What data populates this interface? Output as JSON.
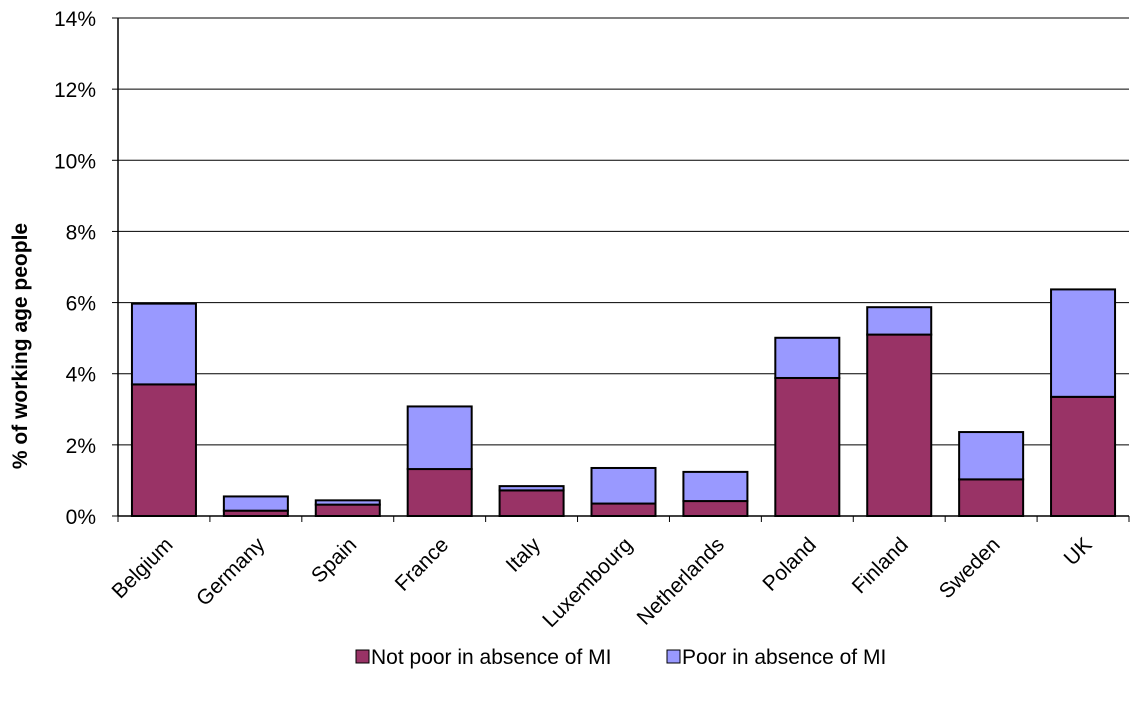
{
  "chart_data": {
    "type": "bar",
    "stacked": true,
    "categories": [
      "Belgium",
      "Germany",
      "Spain",
      "France",
      "Italy",
      "Luxembourg",
      "Netherlands",
      "Poland",
      "Finland",
      "Sweden",
      "UK"
    ],
    "series": [
      {
        "name": "Not poor in absence of MI",
        "color": "#993366",
        "values": [
          3.7,
          0.15,
          0.32,
          1.32,
          0.72,
          0.35,
          0.42,
          3.88,
          5.1,
          1.03,
          3.35
        ]
      },
      {
        "name": "Poor in absence of MI",
        "color": "#9999ff",
        "values": [
          2.27,
          0.4,
          0.12,
          1.76,
          0.12,
          1.0,
          0.82,
          1.13,
          0.77,
          1.33,
          3.02
        ]
      }
    ],
    "ylabel": "% of working age people",
    "ylim": [
      0,
      14
    ],
    "yticks": [
      "0%",
      "2%",
      "4%",
      "6%",
      "8%",
      "10%",
      "12%",
      "14%"
    ],
    "ytick_values": [
      0,
      2,
      4,
      6,
      8,
      10,
      12,
      14
    ],
    "grid": true,
    "legend_position": "bottom"
  }
}
